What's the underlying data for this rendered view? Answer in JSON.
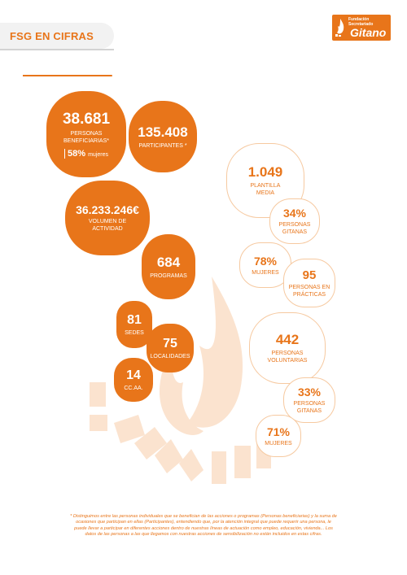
{
  "header": {
    "title": "FSG EN CIFRAS"
  },
  "logo": {
    "line1": "Fundación",
    "line2": "Secretariado",
    "name": "Gitano"
  },
  "stats_left": {
    "beneficiarias": {
      "value": "38.681",
      "label": "PERSONAS BENEFICIARIAS*",
      "women_pct": "58%",
      "women_label": "mujeres"
    },
    "participantes": {
      "value": "135.408",
      "label": "PARTICIPANTES *"
    },
    "volumen": {
      "value": "36.233.246€",
      "label": "VOLUMEN DE ACTIVIDAD"
    },
    "programas": {
      "value": "684",
      "label": "PROGRAMAS"
    },
    "sedes": {
      "value": "81",
      "label": "SEDES"
    },
    "localidades": {
      "value": "75",
      "label": "LOCALIDADES"
    },
    "ccaa": {
      "value": "14",
      "label": "CC.AA."
    }
  },
  "stats_right": {
    "plantilla": {
      "value": "1.049",
      "label": "PLANTILLA MEDIA"
    },
    "plantilla_gitanas": {
      "value": "34%",
      "label": "PERSONAS GITANAS"
    },
    "plantilla_mujeres": {
      "value": "78%",
      "label": "MUJERES"
    },
    "practicas": {
      "value": "95",
      "label": "PERSONAS EN PRÁCTICAS"
    },
    "voluntarias": {
      "value": "442",
      "label": "PERSONAS VOLUNTARIAS"
    },
    "voluntarias_gitanas": {
      "value": "33%",
      "label": "PERSONAS GITANAS"
    },
    "voluntarias_mujeres": {
      "value": "71%",
      "label": "MUJERES"
    }
  },
  "footnote": "* Distinguimos entre las personas individuales que se benefician de las acciones o programas (Personas beneficiarias) y la suma de ocasiones que participan en ellas (Participantes), entendiendo que, por la atención integral que puede requerir una persona, le puede llevar a participar en diferentes acciones dentro de nuestras líneas de actuación como empleo, educación, vivienda... Los datos de las personas a las que llegamos con nuestras acciones de sensibilización no están incluidos en estas cifras.",
  "colors": {
    "accent": "#e8751a",
    "light": "#f6c9a0",
    "watermark": "#fbe3cf"
  }
}
